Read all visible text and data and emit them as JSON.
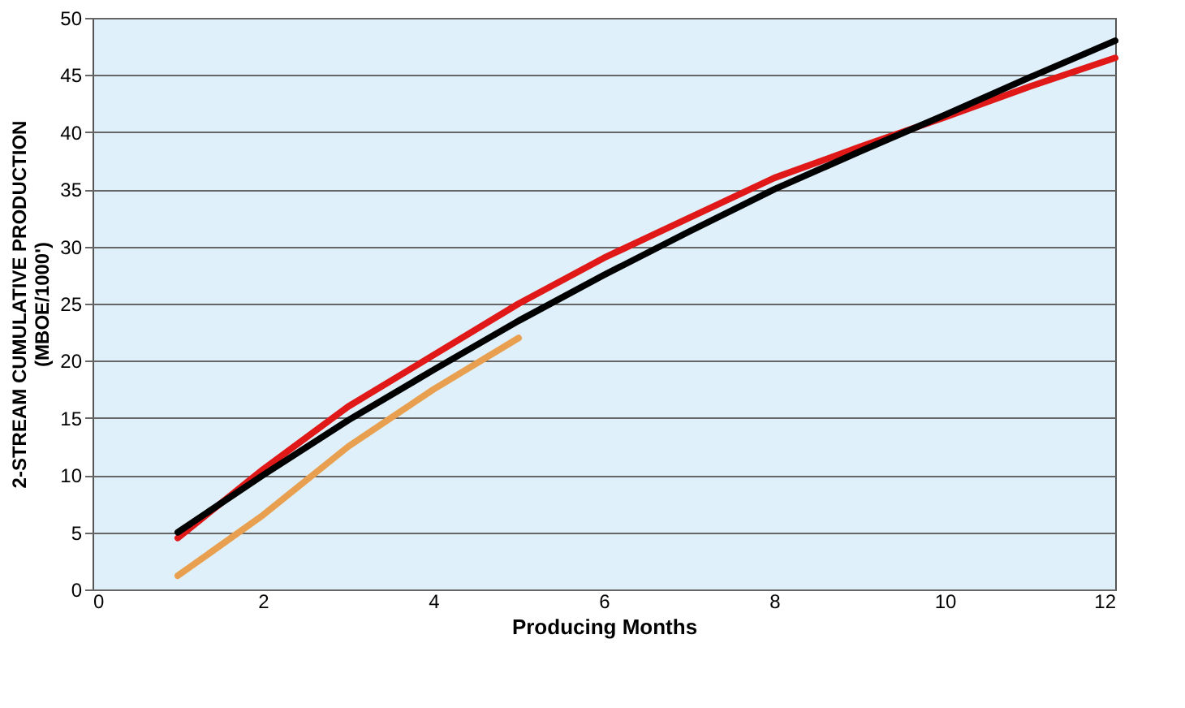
{
  "chart_data": {
    "type": "line",
    "xlabel": "Producing Months",
    "ylabel": "2-STREAM CUMULATIVE PRODUCTION\n(MBOE/1000')",
    "xlim": [
      0,
      12
    ],
    "xticks": [
      0,
      2,
      4,
      6,
      8,
      10,
      12
    ],
    "ylim": [
      0,
      50
    ],
    "yticks": [
      0,
      5,
      10,
      15,
      20,
      25,
      30,
      35,
      40,
      45,
      50
    ],
    "grid": "y",
    "marker": "none",
    "line_style": "solid",
    "series": [
      {
        "color": "#e8a050",
        "x": [
          1,
          2,
          3,
          4,
          5
        ],
        "values": [
          1.2,
          6.5,
          12.5,
          17.5,
          22
        ]
      },
      {
        "color": "#e01818",
        "x": [
          1,
          2,
          3,
          4,
          5,
          6,
          7,
          8,
          9,
          9.5,
          10,
          11,
          12
        ],
        "values": [
          4.5,
          10.5,
          16,
          20.5,
          25,
          29,
          32.5,
          36,
          38.7,
          40,
          41.3,
          44,
          46.5
        ]
      },
      {
        "color": "#000000",
        "x": [
          1,
          2,
          3,
          4,
          5,
          6,
          7,
          8,
          9,
          10,
          11,
          12
        ],
        "values": [
          5,
          10,
          14.8,
          19.2,
          23.5,
          27.5,
          31.3,
          35,
          38.3,
          41.5,
          44.8,
          48
        ]
      }
    ]
  }
}
